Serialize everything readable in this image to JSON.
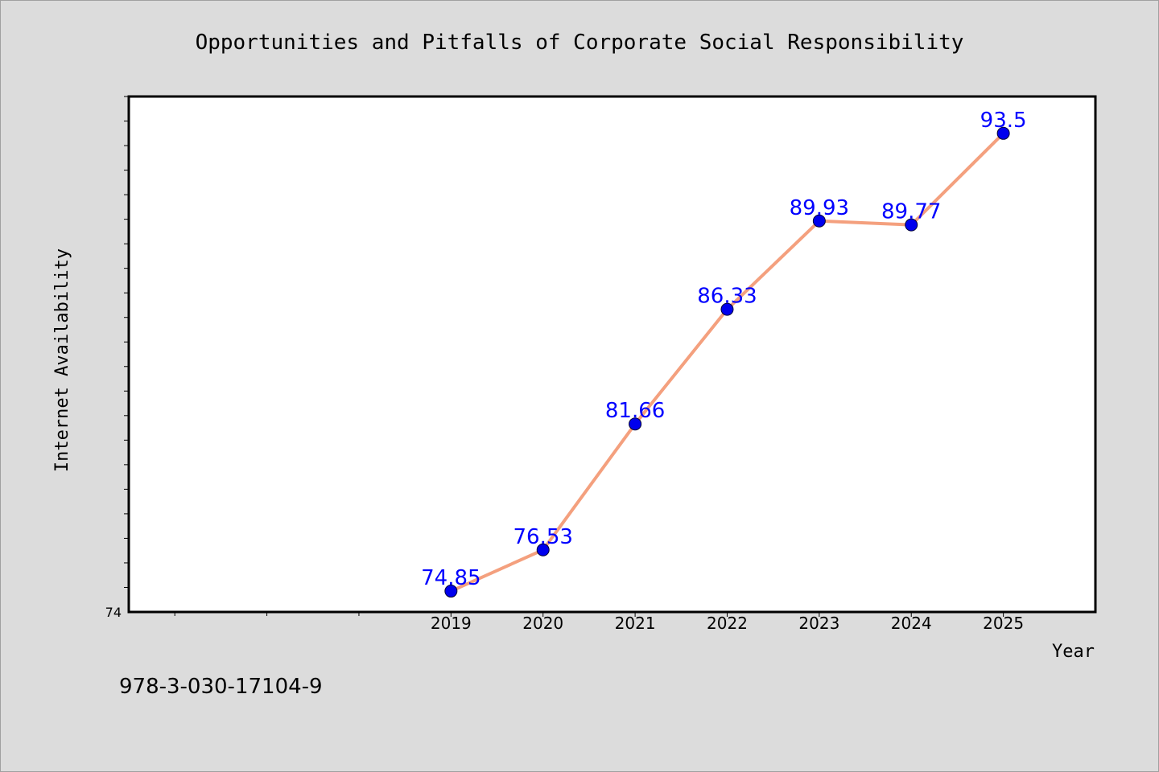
{
  "chart_data": {
    "type": "line",
    "title": "Opportunities and Pitfalls of Corporate Social Responsibility",
    "xlabel": "Year",
    "ylabel": "Internet Availability",
    "categories": [
      "2019",
      "2020",
      "2021",
      "2022",
      "2023",
      "2024",
      "2025"
    ],
    "x_range": [
      2015.5,
      2026
    ],
    "ylim": [
      74,
      95
    ],
    "y_tick_labels": [
      "74"
    ],
    "series": [
      {
        "values": [
          74.85,
          76.53,
          81.66,
          86.33,
          89.93,
          89.77,
          93.5
        ],
        "point_labels": [
          "74.85",
          "76.53",
          "81.66",
          "86.33",
          "89.93",
          "89.77",
          "93.5"
        ],
        "line_color": "#f4a07e",
        "marker_color": "#0000ee",
        "label_color": "#0000ff"
      }
    ],
    "grid": false,
    "legend": "none"
  },
  "footer_text": "978-3-030-17104-9",
  "colors": {
    "background": "#dcdcdc",
    "plot_background": "#ffffff",
    "axis": "#000000"
  }
}
